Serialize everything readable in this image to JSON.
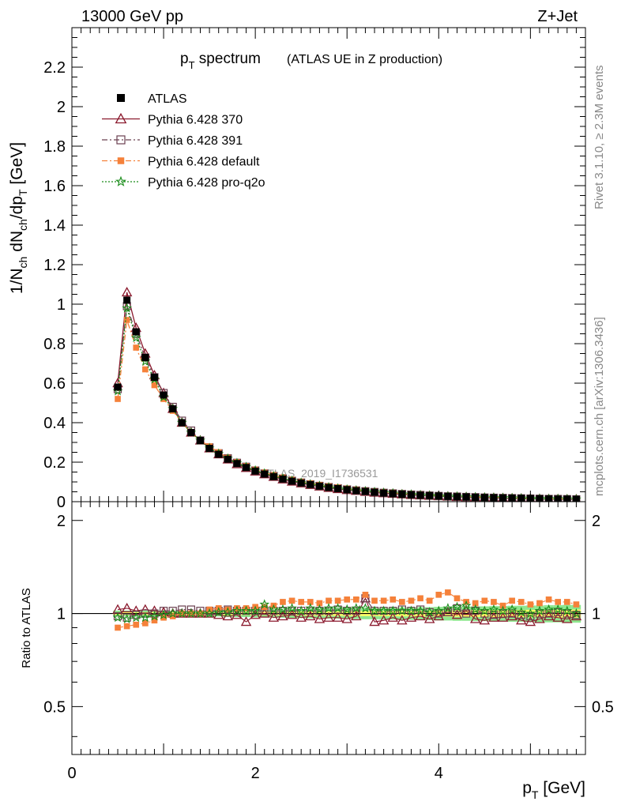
{
  "header": {
    "energy": "13000 GeV pp",
    "process": "Z+Jet"
  },
  "side_labels": {
    "right_top": "Rivet 3.1.10, ≥ 2.3M events",
    "right_bottom": "mcplots.cern.ch [arXiv:1306.3436]"
  },
  "chart_data": [
    {
      "type": "scatter",
      "panel": "main",
      "title": "p_T spectrum",
      "title_main": "p",
      "title_sub": "T",
      "title_rest": " spectrum",
      "subtitle": "(ATLAS UE in Z production)",
      "ylabel": "1/N_ch dN_ch/dp_T [GeV]",
      "ylabel_parts": {
        "a": "1/N",
        "a_sub": "ch",
        "b": " dN",
        "b_sub": "ch",
        "c": "/dp",
        "c_sub": "T",
        "d": " [GeV]"
      },
      "watermark": "ATLAS_2019_I1736531",
      "xlim": [
        0,
        5.6
      ],
      "ylim": [
        0,
        2.4
      ],
      "yticks": [
        0,
        0.2,
        0.4,
        0.6,
        0.8,
        1,
        1.2,
        1.4,
        1.6,
        1.8,
        2,
        2.2
      ],
      "ytick_labels": [
        "0",
        "0.2",
        "0.4",
        "0.6",
        "0.8",
        "1",
        "1.2",
        "1.4",
        "1.6",
        "1.8",
        "2",
        "2.2"
      ],
      "legend_position": "top-left",
      "x": [
        0.5,
        0.6,
        0.7,
        0.8,
        0.9,
        1.0,
        1.1,
        1.2,
        1.3,
        1.4,
        1.5,
        1.6,
        1.7,
        1.8,
        1.9,
        2.0,
        2.1,
        2.2,
        2.3,
        2.4,
        2.5,
        2.6,
        2.7,
        2.8,
        2.9,
        3.0,
        3.1,
        3.2,
        3.3,
        3.4,
        3.5,
        3.6,
        3.7,
        3.8,
        3.9,
        4.0,
        4.1,
        4.2,
        4.3,
        4.4,
        4.5,
        4.6,
        4.7,
        4.8,
        4.9,
        5.0,
        5.1,
        5.2,
        5.3,
        5.4,
        5.5
      ],
      "series": [
        {
          "name": "ATLAS",
          "color": "#000000",
          "marker": "square",
          "values": [
            0.58,
            1.02,
            0.86,
            0.73,
            0.63,
            0.54,
            0.47,
            0.4,
            0.35,
            0.31,
            0.27,
            0.24,
            0.215,
            0.193,
            0.173,
            0.155,
            0.14,
            0.127,
            0.115,
            0.104,
            0.095,
            0.087,
            0.079,
            0.072,
            0.066,
            0.061,
            0.056,
            0.052,
            0.048,
            0.044,
            0.041,
            0.038,
            0.035,
            0.033,
            0.031,
            0.029,
            0.027,
            0.025,
            0.024,
            0.022,
            0.021,
            0.02,
            0.019,
            0.018,
            0.017,
            0.016,
            0.015,
            0.014,
            0.013,
            0.013,
            0.012
          ]
        },
        {
          "name": "Pythia 6.428 370",
          "color": "#8b1a2e",
          "marker": "triangle",
          "line": "solid",
          "values": [
            0.6,
            1.06,
            0.88,
            0.75,
            0.64,
            0.55,
            0.47,
            0.4,
            0.35,
            0.31,
            0.27,
            0.24,
            0.214,
            0.19,
            0.171,
            0.153,
            0.139,
            0.126,
            0.113,
            0.102,
            0.093,
            0.085,
            0.077,
            0.07,
            0.064,
            0.059,
            0.055,
            0.05,
            0.046,
            0.043,
            0.04,
            0.037,
            0.034,
            0.032,
            0.03,
            0.028,
            0.026,
            0.024,
            0.023,
            0.021,
            0.02,
            0.019,
            0.018,
            0.017,
            0.016,
            0.015,
            0.014,
            0.013,
            0.013,
            0.012,
            0.012
          ]
        },
        {
          "name": "Pythia 6.428 391",
          "color": "#6b4050",
          "marker": "open-square",
          "line": "dashdot",
          "values": [
            0.57,
            0.99,
            0.85,
            0.73,
            0.63,
            0.55,
            0.48,
            0.41,
            0.36,
            0.31,
            0.275,
            0.245,
            0.22,
            0.197,
            0.177,
            0.158,
            0.143,
            0.13,
            0.117,
            0.106,
            0.097,
            0.088,
            0.08,
            0.074,
            0.068,
            0.062,
            0.057,
            0.053,
            0.049,
            0.045,
            0.042,
            0.039,
            0.036,
            0.034,
            0.031,
            0.029,
            0.027,
            0.026,
            0.024,
            0.023,
            0.021,
            0.02,
            0.019,
            0.018,
            0.017,
            0.016,
            0.015,
            0.014,
            0.014,
            0.013,
            0.012
          ]
        },
        {
          "name": "Pythia 6.428 default",
          "color": "#f5813a",
          "marker": "filled-square",
          "line": "dashdot",
          "values": [
            0.52,
            0.92,
            0.78,
            0.67,
            0.59,
            0.52,
            0.46,
            0.4,
            0.35,
            0.31,
            0.28,
            0.25,
            0.222,
            0.2,
            0.18,
            0.162,
            0.147,
            0.134,
            0.122,
            0.111,
            0.101,
            0.093,
            0.085,
            0.078,
            0.072,
            0.066,
            0.061,
            0.056,
            0.052,
            0.048,
            0.045,
            0.041,
            0.038,
            0.036,
            0.033,
            0.031,
            0.029,
            0.027,
            0.026,
            0.024,
            0.023,
            0.022,
            0.021,
            0.019,
            0.018,
            0.017,
            0.016,
            0.015,
            0.015,
            0.014,
            0.013
          ]
        },
        {
          "name": "Pythia 6.428 pro-q2o",
          "color": "#1a8c1a",
          "marker": "star",
          "line": "dotted",
          "values": [
            0.56,
            0.98,
            0.83,
            0.71,
            0.62,
            0.53,
            0.47,
            0.4,
            0.35,
            0.31,
            0.27,
            0.243,
            0.218,
            0.196,
            0.176,
            0.158,
            0.143,
            0.129,
            0.117,
            0.106,
            0.096,
            0.088,
            0.08,
            0.073,
            0.067,
            0.062,
            0.057,
            0.053,
            0.049,
            0.045,
            0.042,
            0.038,
            0.036,
            0.033,
            0.031,
            0.029,
            0.027,
            0.026,
            0.024,
            0.023,
            0.021,
            0.02,
            0.019,
            0.018,
            0.017,
            0.016,
            0.015,
            0.014,
            0.014,
            0.013,
            0.012
          ]
        }
      ]
    },
    {
      "type": "scatter",
      "panel": "ratio",
      "ylabel": "Ratio to ATLAS",
      "xlabel": "p_T [GeV]",
      "xlabel_main": "p",
      "xlabel_sub": "T",
      "xlabel_rest": " [GeV]",
      "xlim": [
        0,
        5.6
      ],
      "ylim": [
        0.35,
        2.3
      ],
      "yticks": [
        0.5,
        1,
        2
      ],
      "ytick_labels": [
        "0.5",
        "1",
        "2"
      ],
      "xticks": [
        0,
        2,
        4
      ],
      "xtick_labels": [
        "0",
        "2",
        "4"
      ],
      "band_colors": {
        "inner": "#ffff66",
        "outer": "#8ee68e"
      },
      "band_half_width": [
        0.01,
        0.01,
        0.01,
        0.01,
        0.01,
        0.01,
        0.01,
        0.01,
        0.01,
        0.01,
        0.01,
        0.01,
        0.012,
        0.012,
        0.012,
        0.013,
        0.013,
        0.014,
        0.014,
        0.015,
        0.015,
        0.016,
        0.016,
        0.017,
        0.017,
        0.018,
        0.018,
        0.019,
        0.019,
        0.02,
        0.02,
        0.021,
        0.021,
        0.022,
        0.022,
        0.023,
        0.023,
        0.024,
        0.024,
        0.025,
        0.025,
        0.026,
        0.026,
        0.027,
        0.027,
        0.028,
        0.028,
        0.029,
        0.029,
        0.03,
        0.03
      ],
      "series": [
        {
          "name": "Pythia 6.428 370",
          "color": "#8b1a2e",
          "marker": "triangle",
          "line": "solid",
          "values": [
            1.03,
            1.04,
            1.02,
            1.03,
            1.02,
            1.01,
            1.0,
            1.0,
            1.0,
            1.0,
            1.0,
            0.99,
            0.98,
            0.99,
            0.94,
            0.99,
            1.0,
            0.97,
            0.98,
            0.99,
            0.97,
            0.98,
            0.96,
            0.97,
            0.97,
            0.96,
            0.98,
            1.12,
            0.94,
            0.95,
            0.97,
            0.95,
            0.97,
            0.98,
            0.96,
            0.98,
            1.01,
            0.99,
            1.02,
            0.96,
            0.95,
            0.97,
            0.97,
            0.98,
            0.95,
            0.94,
            0.96,
            0.98,
            0.97,
            0.96,
            0.98
          ]
        },
        {
          "name": "Pythia 6.428 391",
          "color": "#6b4050",
          "marker": "open-square",
          "line": "dashdot",
          "values": [
            0.98,
            0.97,
            0.99,
            1.0,
            1.0,
            1.02,
            1.02,
            1.03,
            1.03,
            1.02,
            1.02,
            1.02,
            1.03,
            1.02,
            1.02,
            1.02,
            1.02,
            1.02,
            1.02,
            1.02,
            1.02,
            1.02,
            1.02,
            1.02,
            1.03,
            1.02,
            1.02,
            1.12,
            1.02,
            1.02,
            1.02,
            1.03,
            1.02,
            1.03,
            1.01,
            1.0,
            1.01,
            1.04,
            1.0,
            1.02,
            1.0,
            0.99,
            1.0,
            1.0,
            0.99,
            0.98,
            1.0,
            1.0,
            1.01,
            1.0,
            0.99
          ]
        },
        {
          "name": "Pythia 6.428 default",
          "color": "#f5813a",
          "marker": "filled-square",
          "line": "dashdot",
          "values": [
            0.9,
            0.91,
            0.92,
            0.93,
            0.95,
            0.97,
            0.98,
            1.0,
            1.0,
            1.0,
            1.03,
            1.04,
            1.03,
            1.04,
            1.04,
            1.05,
            1.05,
            1.06,
            1.09,
            1.1,
            1.09,
            1.09,
            1.08,
            1.1,
            1.1,
            1.11,
            1.11,
            1.15,
            1.1,
            1.1,
            1.11,
            1.09,
            1.1,
            1.12,
            1.1,
            1.15,
            1.17,
            1.12,
            1.09,
            1.08,
            1.1,
            1.09,
            1.06,
            1.1,
            1.09,
            1.07,
            1.08,
            1.11,
            1.09,
            1.09,
            1.07
          ]
        },
        {
          "name": "Pythia 6.428 pro-q2o",
          "color": "#1a8c1a",
          "marker": "star",
          "line": "dotted",
          "values": [
            0.97,
            0.96,
            0.97,
            0.97,
            0.98,
            0.99,
            1.0,
            1.0,
            1.0,
            1.0,
            1.0,
            1.01,
            1.01,
            1.02,
            1.02,
            1.02,
            1.07,
            1.03,
            1.03,
            1.04,
            1.02,
            1.04,
            1.03,
            1.04,
            1.04,
            1.03,
            1.04,
            1.04,
            1.02,
            1.02,
            1.02,
            1.02,
            1.02,
            1.02,
            1.01,
            1.02,
            1.04,
            1.05,
            1.06,
            1.03,
            1.02,
            1.03,
            1.02,
            1.03,
            1.01,
            1.0,
            1.02,
            1.03,
            1.03,
            1.02,
            1.0
          ]
        }
      ]
    }
  ]
}
